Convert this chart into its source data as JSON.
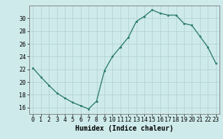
{
  "x": [
    0,
    1,
    2,
    3,
    4,
    5,
    6,
    7,
    8,
    9,
    10,
    11,
    12,
    13,
    14,
    15,
    16,
    17,
    18,
    19,
    20,
    21,
    22,
    23
  ],
  "y": [
    22.2,
    20.8,
    19.5,
    18.3,
    17.5,
    16.8,
    16.3,
    15.8,
    17.0,
    21.8,
    24.0,
    25.5,
    27.0,
    29.5,
    30.3,
    31.3,
    30.8,
    30.5,
    30.5,
    29.2,
    28.9,
    27.2,
    25.5,
    23.0
  ],
  "line_color": "#2e7d6e",
  "marker": "s",
  "marker_size": 1.8,
  "bg_color": "#ceeaea",
  "grid_color": "#b0d0d0",
  "xlabel": "Humidex (Indice chaleur)",
  "xlim": [
    -0.5,
    23.5
  ],
  "ylim": [
    15,
    32
  ],
  "yticks": [
    16,
    18,
    20,
    22,
    24,
    26,
    28,
    30
  ],
  "xticks": [
    0,
    1,
    2,
    3,
    4,
    5,
    6,
    7,
    8,
    9,
    10,
    11,
    12,
    13,
    14,
    15,
    16,
    17,
    18,
    19,
    20,
    21,
    22,
    23
  ],
  "xlabel_fontsize": 7.0,
  "tick_fontsize": 6.0,
  "line_width": 1.0
}
